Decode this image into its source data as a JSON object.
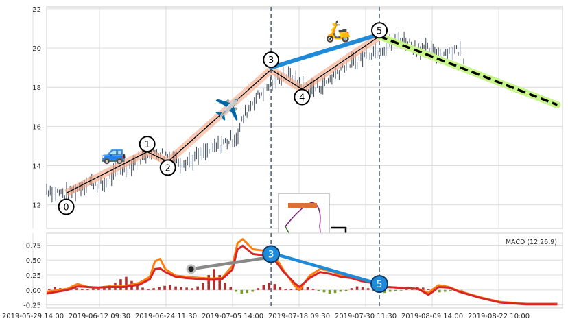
{
  "chart_data": [
    {
      "panel": "price",
      "type": "candlestick",
      "ylim": [
        10.8,
        22.1
      ],
      "yticks": [
        12,
        14,
        16,
        18,
        20,
        22
      ],
      "grid": true,
      "x_range": [
        0,
        95
      ],
      "price_trace": [
        [
          0,
          12.8
        ],
        [
          4,
          12.5
        ],
        [
          8,
          13.2
        ],
        [
          11,
          13.0
        ],
        [
          14,
          13.8
        ],
        [
          16,
          14.0
        ],
        [
          19,
          14.6
        ],
        [
          21,
          14.7
        ],
        [
          24,
          14.5
        ],
        [
          26,
          14.2
        ],
        [
          28,
          14.3
        ],
        [
          31,
          14.7
        ],
        [
          34,
          15.1
        ],
        [
          37,
          15.5
        ],
        [
          38,
          16.4
        ],
        [
          40,
          17.3
        ],
        [
          42,
          17.8
        ],
        [
          44,
          18.3
        ],
        [
          46,
          18.7
        ],
        [
          48,
          18.4
        ],
        [
          50,
          18.0
        ],
        [
          52,
          17.9
        ],
        [
          54,
          18.2
        ],
        [
          56,
          18.7
        ],
        [
          58,
          19.2
        ],
        [
          60,
          19.3
        ],
        [
          62,
          19.7
        ],
        [
          64,
          19.9
        ],
        [
          66,
          20.1
        ],
        [
          68,
          20.5
        ],
        [
          70,
          20.3
        ],
        [
          72,
          20.0
        ],
        [
          74,
          19.9
        ],
        [
          76,
          19.7
        ],
        [
          78,
          19.8
        ],
        [
          80,
          19.9
        ],
        [
          81,
          19.5
        ]
      ],
      "waves": [
        {
          "label": "0",
          "x": 3.8,
          "y": 12.6,
          "label_y": 11.9
        },
        {
          "label": "1",
          "x": 19.5,
          "y": 14.7,
          "label_y": 15.1
        },
        {
          "label": "2",
          "x": 23.5,
          "y": 14.2,
          "label_y": 13.9
        },
        {
          "label": "3",
          "x": 43.5,
          "y": 18.9,
          "label_y": 19.4
        },
        {
          "label": "4",
          "x": 49.5,
          "y": 17.9,
          "label_y": 17.5
        },
        {
          "label": "5",
          "x": 64.5,
          "y": 20.6,
          "label_y": 20.9
        }
      ],
      "vertical_markers_x": [
        43.5,
        64.5
      ],
      "projection": {
        "start": [
          64.5,
          20.6
        ],
        "end": [
          99,
          17.1
        ]
      },
      "connector_3_5": {
        "start": [
          43.5,
          19.0
        ],
        "end": [
          64.5,
          20.7
        ]
      },
      "emoji": [
        {
          "name": "car",
          "glyph": "🚙",
          "x": 13,
          "y": 14.3
        },
        {
          "name": "airplane",
          "glyph": "✈️",
          "x": 35,
          "y": 16.5
        },
        {
          "name": "scooter",
          "glyph": "🛵",
          "x": 56.5,
          "y": 20.5
        }
      ]
    },
    {
      "panel": "macd",
      "type": "line+bar",
      "title": "MACD (12,26,9)",
      "ylim": [
        -0.3,
        0.95
      ],
      "yticks": [
        -0.25,
        0.0,
        0.25,
        0.5,
        0.75
      ],
      "grid": true,
      "series": [
        {
          "color": "#ff7f0e",
          "points": [
            [
              0,
              -0.03
            ],
            [
              4,
              0.02
            ],
            [
              6,
              0.1
            ],
            [
              8,
              0.05
            ],
            [
              10,
              0.04
            ],
            [
              12,
              0.06
            ],
            [
              15,
              0.06
            ],
            [
              18,
              0.12
            ],
            [
              20,
              0.22
            ],
            [
              21,
              0.48
            ],
            [
              22,
              0.52
            ],
            [
              23,
              0.35
            ],
            [
              25,
              0.24
            ],
            [
              27,
              0.22
            ],
            [
              30,
              0.2
            ],
            [
              32,
              0.19
            ],
            [
              34,
              0.2
            ],
            [
              36,
              0.4
            ],
            [
              37,
              0.78
            ],
            [
              38,
              0.85
            ],
            [
              40,
              0.68
            ],
            [
              42,
              0.66
            ],
            [
              44,
              0.6
            ],
            [
              46,
              0.32
            ],
            [
              48,
              0.08
            ],
            [
              49,
              0.0
            ],
            [
              51,
              0.24
            ],
            [
              53,
              0.35
            ],
            [
              55,
              0.32
            ],
            [
              57,
              0.25
            ],
            [
              59,
              0.23
            ],
            [
              61,
              0.18
            ],
            [
              63,
              0.14
            ],
            [
              65,
              0.08
            ],
            [
              66,
              0.05
            ],
            [
              68,
              0.04
            ],
            [
              72,
              0.02
            ],
            [
              74,
              -0.05
            ],
            [
              75,
              0.02
            ],
            [
              76,
              0.08
            ],
            [
              78,
              0.05
            ],
            [
              80,
              -0.02
            ],
            [
              84,
              -0.12
            ],
            [
              88,
              -0.2
            ],
            [
              93,
              -0.23
            ],
            [
              99,
              -0.23
            ]
          ]
        },
        {
          "color": "#d62728",
          "points": [
            [
              0,
              -0.06
            ],
            [
              4,
              0.0
            ],
            [
              6,
              0.06
            ],
            [
              8,
              0.05
            ],
            [
              10,
              0.04
            ],
            [
              12,
              0.05
            ],
            [
              15,
              0.05
            ],
            [
              18,
              0.09
            ],
            [
              20,
              0.18
            ],
            [
              21,
              0.35
            ],
            [
              22,
              0.36
            ],
            [
              23,
              0.3
            ],
            [
              25,
              0.22
            ],
            [
              27,
              0.2
            ],
            [
              30,
              0.18
            ],
            [
              32,
              0.17
            ],
            [
              34,
              0.18
            ],
            [
              36,
              0.34
            ],
            [
              37,
              0.68
            ],
            [
              38,
              0.74
            ],
            [
              40,
              0.6
            ],
            [
              42,
              0.58
            ],
            [
              44,
              0.52
            ],
            [
              46,
              0.3
            ],
            [
              48,
              0.12
            ],
            [
              49,
              0.05
            ],
            [
              51,
              0.2
            ],
            [
              53,
              0.3
            ],
            [
              55,
              0.27
            ],
            [
              57,
              0.22
            ],
            [
              59,
              0.2
            ],
            [
              61,
              0.15
            ],
            [
              63,
              0.12
            ],
            [
              65,
              0.06
            ],
            [
              66,
              0.05
            ],
            [
              68,
              0.04
            ],
            [
              72,
              0.02
            ],
            [
              74,
              -0.08
            ],
            [
              75,
              -0.02
            ],
            [
              76,
              0.05
            ],
            [
              78,
              0.04
            ],
            [
              80,
              -0.03
            ],
            [
              84,
              -0.13
            ],
            [
              88,
              -0.21
            ],
            [
              93,
              -0.24
            ],
            [
              99,
              -0.24
            ]
          ]
        }
      ],
      "histogram": [
        0.02,
        0.05,
        0.03,
        0.02,
        0.04,
        0.03,
        0.02,
        0.01,
        0.03,
        0.05,
        0.06,
        0.08,
        0.12,
        0.18,
        0.22,
        0.15,
        0.08,
        0.04,
        0.02,
        0.03,
        0.05,
        0.07,
        0.08,
        0.06,
        0.05,
        0.04,
        0.03,
        0.06,
        0.12,
        0.25,
        0.35,
        0.25,
        0.12,
        0.05,
        -0.03,
        -0.06,
        -0.05,
        -0.03,
        0.03,
        0.08,
        0.12,
        0.1,
        0.05,
        0.02,
        0.01,
        0.03,
        0.06,
        0.05,
        0.02,
        -0.02,
        -0.04,
        -0.06,
        -0.05,
        -0.03,
        -0.02,
        0.03,
        0.06,
        0.05,
        0.03,
        -0.02,
        -0.04,
        -0.05,
        -0.03,
        -0.02,
        -0.01,
        0.01,
        0.03,
        0.05,
        0.04,
        0.02,
        -0.02,
        -0.04,
        -0.03,
        -0.02,
        -0.02,
        -0.01
      ],
      "connectors": [
        {
          "color": "#888888",
          "start": [
            28,
            0.35
          ],
          "end": [
            43.5,
            0.55
          ]
        },
        {
          "color": "#1f8ad8",
          "start": [
            43.5,
            0.62
          ],
          "end": [
            64.5,
            0.1
          ]
        }
      ],
      "wave_markers": [
        {
          "label": "3",
          "x": 43.5,
          "y": 0.6
        },
        {
          "label": "5",
          "x": 64.5,
          "y": 0.1
        }
      ],
      "gray_marker": {
        "x": 28,
        "y": 0.35
      }
    }
  ],
  "x_tick_labels": [
    "2019-05-29 14:00",
    "2019-06-12 09:30",
    "2019-06-24 11:30",
    "2019-07-05 14:00",
    "2019-07-18 09:30",
    "2019-07-30 11:30",
    "2019-08-09 14:00",
    "2019-08-22 10:00"
  ]
}
